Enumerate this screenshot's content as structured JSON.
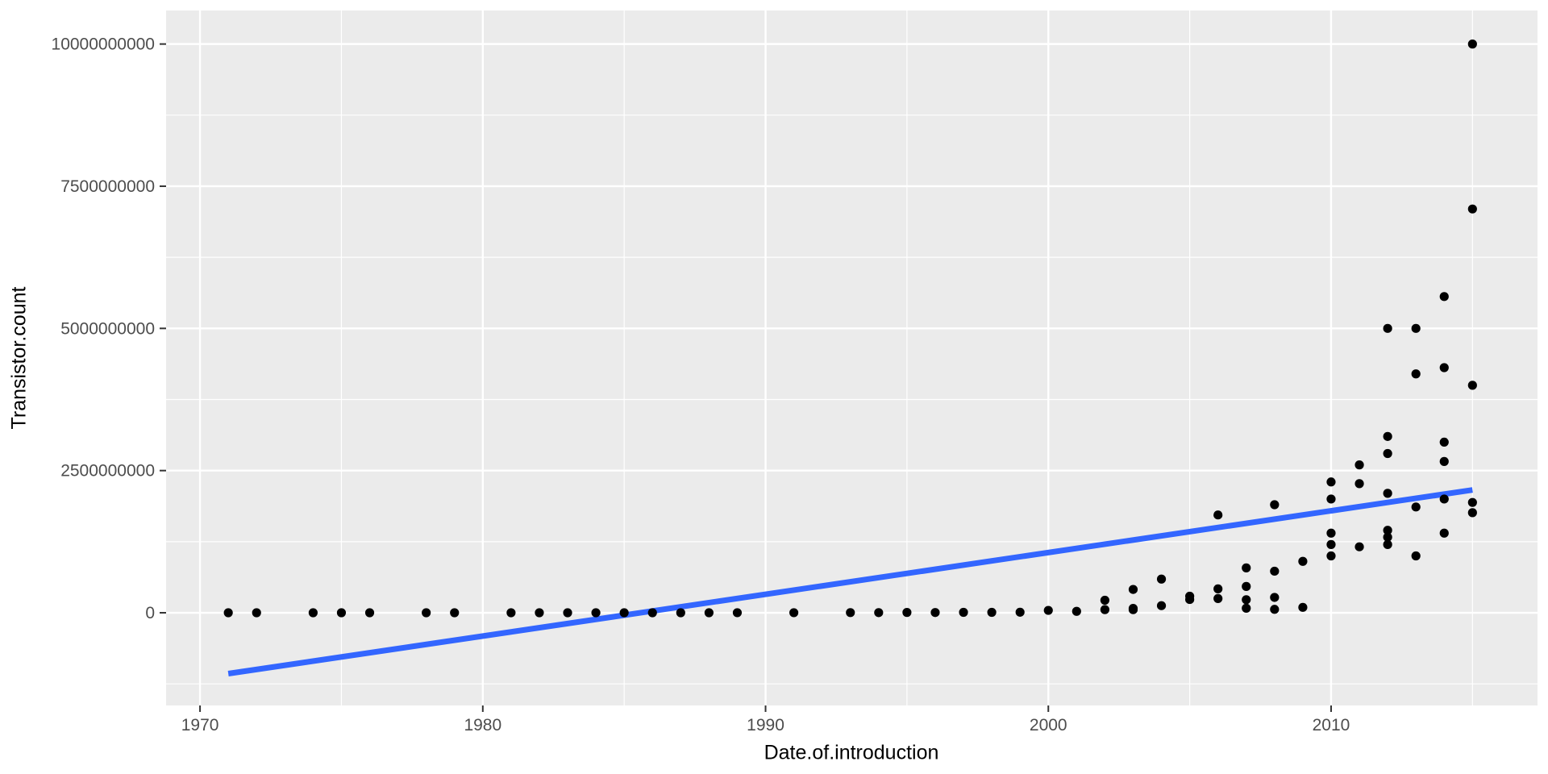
{
  "chart_data": {
    "type": "scatter",
    "title": "",
    "xlabel": "Date.of.introduction",
    "ylabel": "Transistor.count",
    "grid": true,
    "legend": "none",
    "xlim": [
      1968.8,
      2017.3
    ],
    "ylim": [
      -1630000000,
      10590000000
    ],
    "x_ticks": [
      1970,
      1980,
      1990,
      2000,
      2010
    ],
    "x_tick_labels": [
      "1970",
      "1980",
      "1990",
      "2000",
      "2010"
    ],
    "x_minor_ticks": [
      1975,
      1985,
      1995,
      2005,
      2015
    ],
    "y_ticks": [
      0,
      2500000000,
      5000000000,
      7500000000,
      10000000000
    ],
    "y_tick_labels": [
      "0",
      "2500000000",
      "5000000000",
      "7500000000",
      "10000000000"
    ],
    "y_minor_ticks": [
      -1250000000,
      1250000000,
      3750000000,
      6250000000,
      8750000000
    ],
    "points": [
      [
        1971,
        2300
      ],
      [
        1972,
        3500
      ],
      [
        1974,
        6000
      ],
      [
        1975,
        3510
      ],
      [
        1976,
        8500
      ],
      [
        1978,
        29000
      ],
      [
        1979,
        68000
      ],
      [
        1981,
        49000
      ],
      [
        1982,
        134000
      ],
      [
        1983,
        22000
      ],
      [
        1984,
        190000
      ],
      [
        1985,
        275000
      ],
      [
        1986,
        27000
      ],
      [
        1987,
        273000
      ],
      [
        1988,
        275000
      ],
      [
        1989,
        1180000
      ],
      [
        1991,
        1350000
      ],
      [
        1993,
        3100000
      ],
      [
        1994,
        2500000
      ],
      [
        1995,
        5500000
      ],
      [
        1996,
        4300000
      ],
      [
        1997,
        7500000
      ],
      [
        1998,
        7500000
      ],
      [
        1999,
        9500000
      ],
      [
        2000,
        42000000
      ],
      [
        2001,
        25000000
      ],
      [
        2002,
        55000000
      ],
      [
        2002,
        220000000
      ],
      [
        2003,
        54000000
      ],
      [
        2003,
        77000000
      ],
      [
        2003,
        410000000
      ],
      [
        2004,
        125000000
      ],
      [
        2004,
        592000000
      ],
      [
        2005,
        233000000
      ],
      [
        2005,
        291000000
      ],
      [
        2006,
        250000000
      ],
      [
        2006,
        420000000
      ],
      [
        2006,
        1720000000
      ],
      [
        2007,
        80000000
      ],
      [
        2007,
        230000000
      ],
      [
        2007,
        463000000
      ],
      [
        2007,
        789000000
      ],
      [
        2008,
        60000000
      ],
      [
        2008,
        270000000
      ],
      [
        2008,
        731000000
      ],
      [
        2008,
        1900000000
      ],
      [
        2009,
        95000000
      ],
      [
        2009,
        904000000
      ],
      [
        2010,
        1000000000
      ],
      [
        2010,
        1200000000
      ],
      [
        2010,
        1400000000
      ],
      [
        2010,
        2000000000
      ],
      [
        2010,
        2300000000
      ],
      [
        2011,
        1160000000
      ],
      [
        2011,
        2270000000
      ],
      [
        2011,
        2600000000
      ],
      [
        2012,
        1200000000
      ],
      [
        2012,
        1330000000
      ],
      [
        2012,
        1450000000
      ],
      [
        2012,
        2100000000
      ],
      [
        2012,
        2800000000
      ],
      [
        2012,
        3100000000
      ],
      [
        2012,
        5000000000
      ],
      [
        2013,
        1000000000
      ],
      [
        2013,
        1860000000
      ],
      [
        2013,
        4200000000
      ],
      [
        2013,
        5000000000
      ],
      [
        2014,
        1400000000
      ],
      [
        2014,
        2000000000
      ],
      [
        2014,
        2660000000
      ],
      [
        2014,
        3000000000
      ],
      [
        2014,
        4310000000
      ],
      [
        2014,
        5560000000
      ],
      [
        2015,
        1760000000
      ],
      [
        2015,
        1940000000
      ],
      [
        2015,
        4000000000
      ],
      [
        2015,
        7100000000
      ],
      [
        2015,
        10000000000
      ]
    ],
    "trend_line": {
      "type": "linear",
      "x_start": 1971,
      "y_start": -1070000000,
      "x_end": 2015,
      "y_end": 2160000000
    },
    "theme": {
      "panel_bg": "#EBEBEB",
      "grid_color": "#FFFFFF",
      "point_color": "#000000",
      "line_color": "#3366FF",
      "tick_mark_color": "#333333",
      "tick_text_color": "#4D4D4D",
      "title_color": "#000000"
    }
  }
}
